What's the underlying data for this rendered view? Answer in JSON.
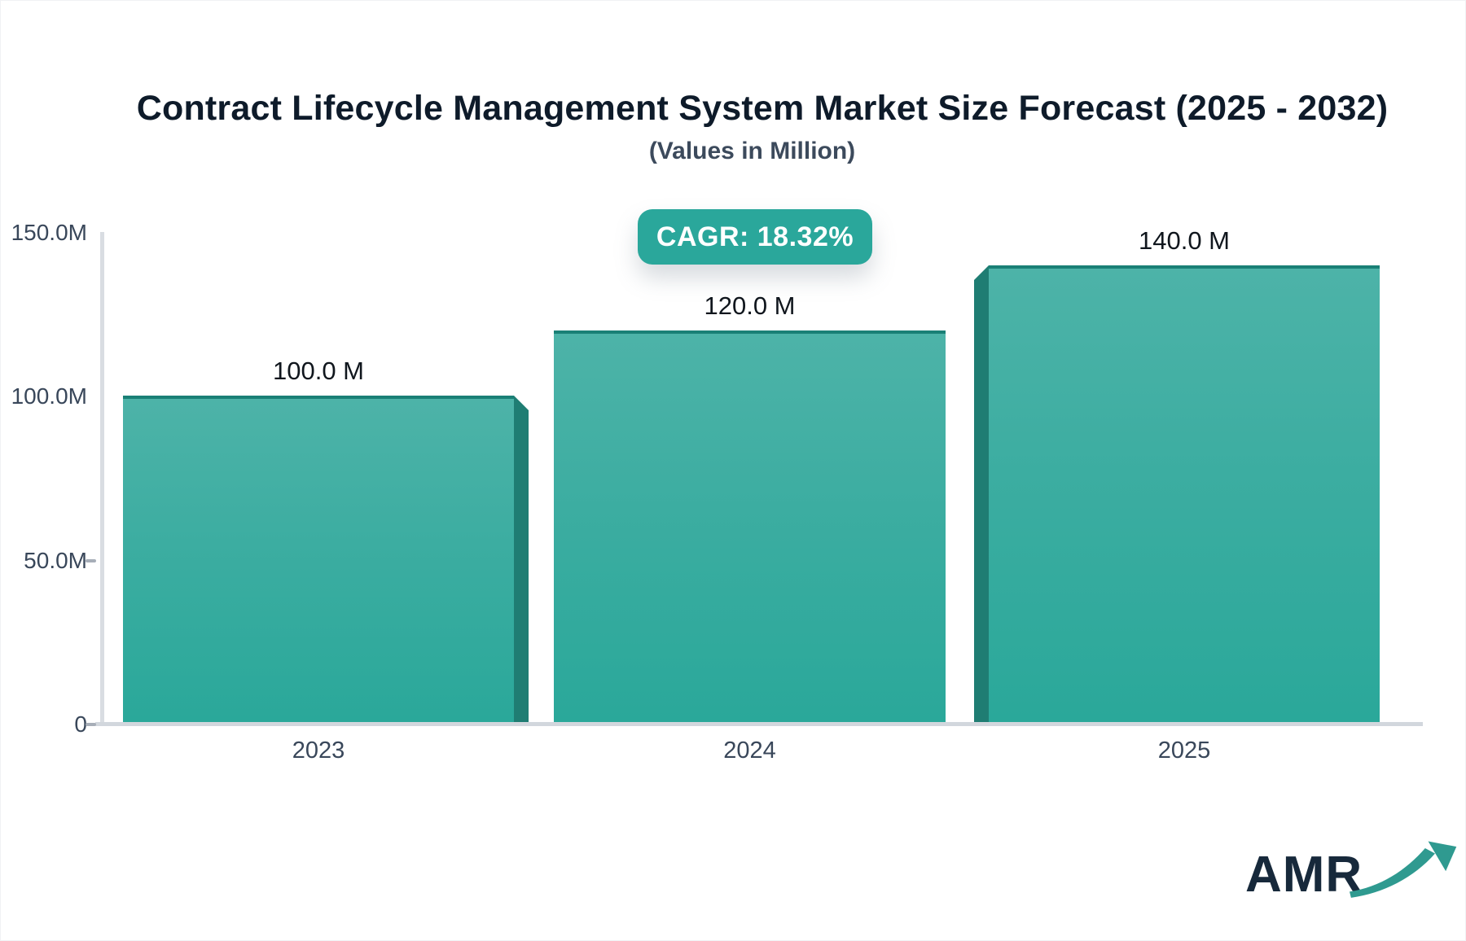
{
  "chart_data": {
    "type": "bar",
    "title": "Contract Lifecycle Management System Market Size Forecast (2025 - 2032)",
    "subtitle": "(Values in Million)",
    "badge": "CAGR: 18.32%",
    "categories": [
      "2023",
      "2024",
      "2025"
    ],
    "values": [
      100,
      120,
      140
    ],
    "value_labels": [
      "100.0 M",
      "120.0 M",
      "140.0 M"
    ],
    "unit": "Million",
    "ylim": [
      0,
      150
    ],
    "ytick_labels": [
      "150.0M",
      "100.0M",
      "50.0M",
      "0"
    ],
    "ytick_values": [
      150,
      100,
      50,
      0
    ],
    "grid": false,
    "legend": false,
    "bar_color_top": "#4db3a8",
    "bar_color_bottom": "#2aa89a",
    "bar_side_color": "#1f7d73",
    "bar_top_edge_color": "#1a8076",
    "badge_color": "#2aa79b",
    "axis_color": "#d6dadf"
  },
  "logo": {
    "text": "AMR",
    "accent_color": "#2f9a90",
    "text_color": "#17293b"
  }
}
